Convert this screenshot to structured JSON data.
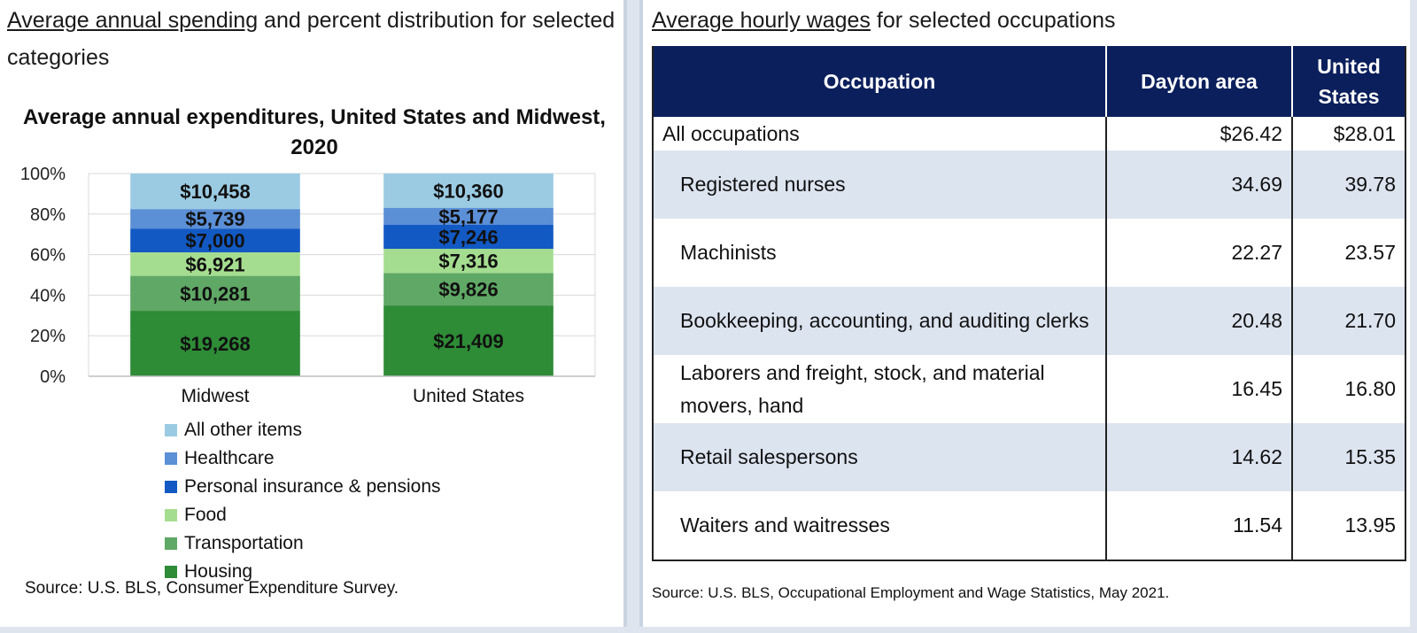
{
  "left": {
    "heading_link": "Average annual spending",
    "heading_rest": " and percent distribution for selected categories",
    "source": "Source: U.S. BLS, Consumer Expenditure Survey."
  },
  "right": {
    "heading_link": "Average hourly wages",
    "heading_rest": " for selected occupations",
    "source": "Source: U.S. BLS, Occupational Employment and Wage Statistics, May 2021.",
    "columns": [
      "Occupation",
      "Dayton area",
      "United States"
    ],
    "rows": [
      {
        "occupation": "All occupations",
        "dayton": "$26.42",
        "us": "$28.01"
      },
      {
        "occupation": "Registered nurses",
        "dayton": "34.69",
        "us": "39.78"
      },
      {
        "occupation": "Machinists",
        "dayton": "22.27",
        "us": "23.57"
      },
      {
        "occupation": "Bookkeeping, accounting, and auditing clerks",
        "dayton": "20.48",
        "us": "21.70"
      },
      {
        "occupation": "Laborers and freight, stock, and material movers, hand",
        "dayton": "16.45",
        "us": "16.80"
      },
      {
        "occupation": "Retail salespersons",
        "dayton": "14.62",
        "us": "15.35"
      },
      {
        "occupation": "Waiters and waitresses",
        "dayton": "11.54",
        "us": "13.95"
      }
    ]
  },
  "chart_data": {
    "type": "bar",
    "stacked": "percent",
    "title": "Average annual expenditures, United States and Midwest, 2020",
    "categories": [
      "Midwest",
      "United States"
    ],
    "y_ticks": [
      "0%",
      "20%",
      "40%",
      "60%",
      "80%",
      "100%"
    ],
    "ylim": [
      0,
      100
    ],
    "legend_position": "below",
    "series": [
      {
        "name": "Housing",
        "color": "#2e8b36",
        "values": [
          19268,
          21409
        ],
        "labels": [
          "$19,268",
          "$21,409"
        ]
      },
      {
        "name": "Transportation",
        "color": "#5fa865",
        "values": [
          10281,
          9826
        ],
        "labels": [
          "$10,281",
          "$9,826"
        ]
      },
      {
        "name": "Food",
        "color": "#a5dd90",
        "values": [
          6921,
          7316
        ],
        "labels": [
          "$6,921",
          "$7,316"
        ]
      },
      {
        "name": "Personal insurance & pensions",
        "color": "#1259c3",
        "values": [
          7000,
          7246
        ],
        "labels": [
          "$7,000",
          "$7,246"
        ]
      },
      {
        "name": "Healthcare",
        "color": "#5b8fd6",
        "values": [
          5739,
          5177
        ],
        "labels": [
          "$5,739",
          "$5,177"
        ]
      },
      {
        "name": "All other items",
        "color": "#9bcbe3",
        "values": [
          10458,
          10360
        ],
        "labels": [
          "$10,458",
          "$10,360"
        ]
      }
    ]
  }
}
